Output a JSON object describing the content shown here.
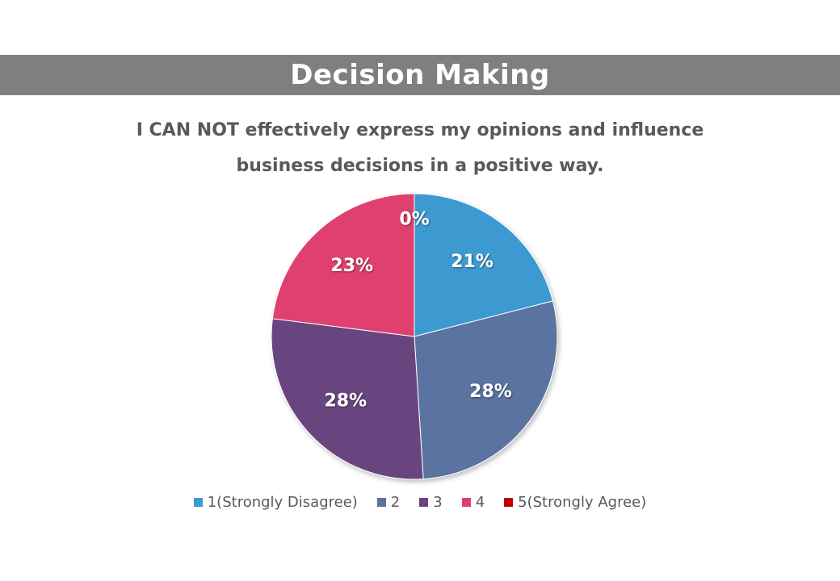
{
  "banner": {
    "title": "Decision Making"
  },
  "chart_data": {
    "type": "pie",
    "title_lines": [
      "I CAN NOT effectively express my opinions and influence",
      "business decisions in a positive way."
    ],
    "categories": [
      "1(Strongly Disagree)",
      "2",
      "3",
      "4",
      "5(Strongly Agree)"
    ],
    "values": [
      21,
      28,
      28,
      23,
      0
    ],
    "labels": [
      "21%",
      "28%",
      "28%",
      "23%",
      "0%"
    ],
    "colors": [
      "#3c9ad1",
      "#5a73a0",
      "#694480",
      "#df3f6f",
      "#c00000"
    ],
    "legend_position": "bottom",
    "start_angle": "12 o'clock",
    "direction": "clockwise"
  }
}
